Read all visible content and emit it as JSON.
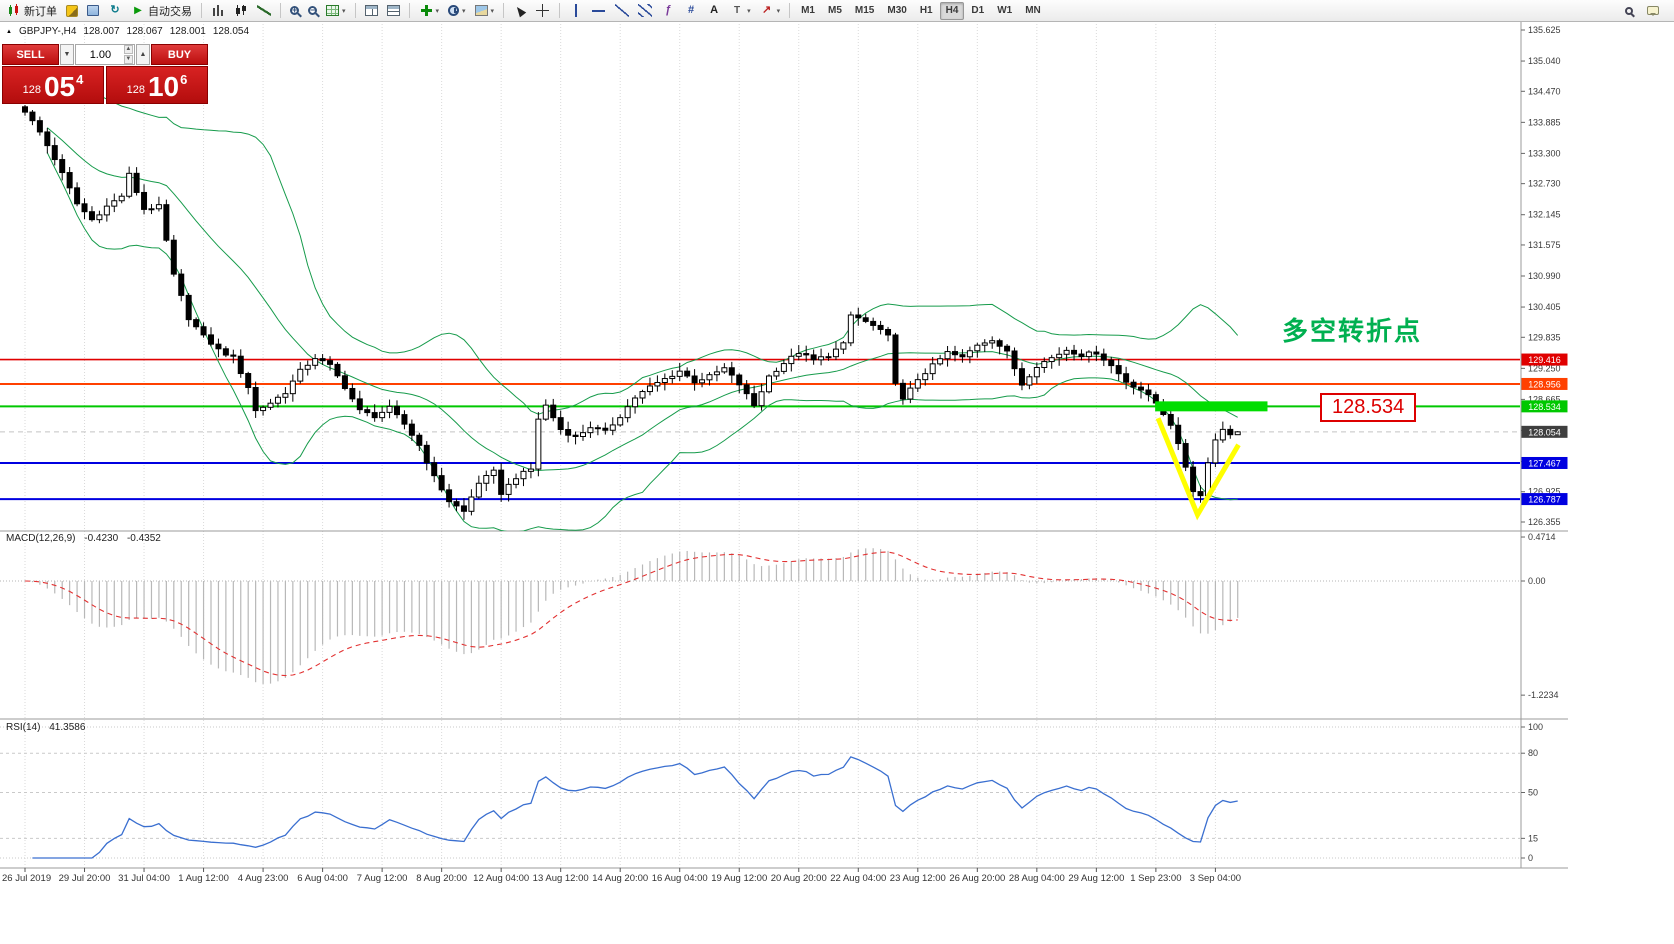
{
  "toolbar": {
    "caret_glyph": "▾",
    "groups": [
      {
        "items": [
          {
            "name": "new-order-button",
            "icon": "candle",
            "label": "新订单"
          },
          {
            "name": "metaeditor-button",
            "icon": "pencil"
          },
          {
            "name": "market-watch-button",
            "icon": "monitor"
          },
          {
            "name": "refresh-button",
            "icon": "refresh",
            "glyph": "↻"
          },
          {
            "name": "autotrading-button",
            "icon": "play",
            "glyph": "▶",
            "label": "自动交易"
          }
        ]
      },
      {
        "items": [
          {
            "name": "bar-chart-button",
            "icon": "bars"
          },
          {
            "name": "candlestick-chart-button",
            "icon": "candles"
          },
          {
            "name": "line-chart-button",
            "icon": "line"
          }
        ]
      },
      {
        "items": [
          {
            "name": "zoom-in-button",
            "icon": "zoom zoomin"
          },
          {
            "name": "zoom-out-button",
            "icon": "zoom zoomout"
          },
          {
            "name": "new-chart-button",
            "icon": "gridgreen",
            "caret": true
          }
        ]
      },
      {
        "items": [
          {
            "name": "tile-windows-button",
            "icon": "tile"
          },
          {
            "name": "arrange-windows-button",
            "icon": "tile2"
          }
        ]
      },
      {
        "items": [
          {
            "name": "indicators-button",
            "icon": "plus",
            "caret": true
          },
          {
            "name": "periods-menu-button",
            "icon": "clock",
            "caret": true
          },
          {
            "name": "templates-button",
            "icon": "image",
            "caret": true
          }
        ]
      },
      {
        "items": [
          {
            "name": "cursor-button",
            "icon": "cursor"
          },
          {
            "name": "crosshair-button",
            "icon": "cross"
          }
        ]
      },
      {
        "items": [
          {
            "name": "vertical-line-button",
            "icon": "vline"
          },
          {
            "name": "horizontal-line-button",
            "icon": "hline"
          },
          {
            "name": "trendline-button",
            "icon": "trend"
          },
          {
            "name": "channel-button",
            "icon": "channel"
          },
          {
            "name": "fibonacci-button",
            "icon": "fibo",
            "glyph": "ƒ"
          },
          {
            "name": "pitchfork-button",
            "icon": "pitch",
            "glyph": "#"
          },
          {
            "name": "text-button",
            "icon": "text",
            "glyph": "A"
          },
          {
            "name": "text-label-button",
            "icon": "tlabel",
            "glyph": "T",
            "caret": true
          },
          {
            "name": "arrows-button",
            "icon": "arrows",
            "glyph": "↗",
            "caret": true
          }
        ]
      },
      {
        "items": [
          {
            "name": "tf-m1-button",
            "label": "M1",
            "cls": "tf"
          },
          {
            "name": "tf-m5-button",
            "label": "M5",
            "cls": "tf"
          },
          {
            "name": "tf-m15-button",
            "label": "M15",
            "cls": "tf"
          },
          {
            "name": "tf-m30-button",
            "label": "M30",
            "cls": "tf"
          },
          {
            "name": "tf-h1-button",
            "label": "H1",
            "cls": "tf"
          },
          {
            "name": "tf-h4-button",
            "label": "H4",
            "cls": "tf",
            "active": true
          },
          {
            "name": "tf-d1-button",
            "label": "D1",
            "cls": "tf"
          },
          {
            "name": "tf-w1-button",
            "label": "W1",
            "cls": "tf"
          },
          {
            "name": "tf-mn-button",
            "label": "MN",
            "cls": "tf"
          }
        ]
      }
    ],
    "right": [
      {
        "name": "search-button",
        "icon": "search"
      },
      {
        "name": "chat-button",
        "icon": "chat"
      }
    ]
  },
  "quote": {
    "caret": "▲",
    "symbol": "GBPJPY-,H4",
    "open": "128.007",
    "high": "128.067",
    "low": "128.001",
    "close": "128.054"
  },
  "trade_panel": {
    "sell_label": "SELL",
    "buy_label": "BUY",
    "volume": "1.00",
    "caret_down": "▼",
    "caret_up": "▲",
    "sell_price": {
      "prefix": "128",
      "big": "05",
      "sup": "4"
    },
    "buy_price": {
      "prefix": "128",
      "big": "10",
      "sup": "6"
    }
  },
  "macd": {
    "name": "MACD(12,26,9)",
    "value_main": "-0.4230",
    "value_signal": "-0.4352"
  },
  "rsi": {
    "name": "RSI(14)",
    "value": "41.3586"
  },
  "annotations": {
    "turning_point": "多空转折点",
    "price_label": "128.534"
  },
  "chart_data": {
    "type": "candlestick",
    "symbol": "GBPJPY",
    "timeframe": "H4",
    "bar_count": 164,
    "close_waypoints": [
      [
        0,
        134.1
      ],
      [
        2,
        133.7
      ],
      [
        4,
        133.2
      ],
      [
        7,
        132.35
      ],
      [
        9,
        132.05
      ],
      [
        11,
        132.3
      ],
      [
        13,
        132.5
      ],
      [
        14,
        132.9
      ],
      [
        16,
        132.25
      ],
      [
        18,
        132.3
      ],
      [
        20,
        131.0
      ],
      [
        22,
        130.2
      ],
      [
        24,
        129.85
      ],
      [
        26,
        129.6
      ],
      [
        28,
        129.45
      ],
      [
        30,
        128.9
      ],
      [
        31,
        128.45
      ],
      [
        33,
        128.6
      ],
      [
        35,
        128.8
      ],
      [
        37,
        129.2
      ],
      [
        39,
        129.45
      ],
      [
        41,
        129.3
      ],
      [
        43,
        128.9
      ],
      [
        45,
        128.45
      ],
      [
        47,
        128.35
      ],
      [
        49,
        128.5
      ],
      [
        51,
        128.2
      ],
      [
        53,
        127.8
      ],
      [
        55,
        127.2
      ],
      [
        57,
        126.75
      ],
      [
        59,
        126.55
      ],
      [
        61,
        127.1
      ],
      [
        63,
        127.3
      ],
      [
        64,
        126.9
      ],
      [
        66,
        127.2
      ],
      [
        68,
        127.35
      ],
      [
        69,
        128.3
      ],
      [
        70,
        128.55
      ],
      [
        72,
        128.1
      ],
      [
        74,
        127.95
      ],
      [
        76,
        128.15
      ],
      [
        78,
        128.05
      ],
      [
        80,
        128.35
      ],
      [
        82,
        128.7
      ],
      [
        84,
        128.9
      ],
      [
        86,
        129.05
      ],
      [
        88,
        129.2
      ],
      [
        90,
        129.0
      ],
      [
        92,
        129.1
      ],
      [
        94,
        129.25
      ],
      [
        96,
        128.95
      ],
      [
        98,
        128.55
      ],
      [
        100,
        129.1
      ],
      [
        102,
        129.35
      ],
      [
        104,
        129.55
      ],
      [
        106,
        129.4
      ],
      [
        108,
        129.5
      ],
      [
        110,
        129.7
      ],
      [
        111,
        130.25
      ],
      [
        112,
        130.2
      ],
      [
        114,
        130.05
      ],
      [
        116,
        129.85
      ],
      [
        117,
        129.0
      ],
      [
        118,
        128.65
      ],
      [
        120,
        129.05
      ],
      [
        122,
        129.3
      ],
      [
        124,
        129.55
      ],
      [
        126,
        129.45
      ],
      [
        128,
        129.7
      ],
      [
        130,
        129.8
      ],
      [
        132,
        129.55
      ],
      [
        134,
        128.95
      ],
      [
        136,
        129.3
      ],
      [
        138,
        129.45
      ],
      [
        140,
        129.6
      ],
      [
        142,
        129.5
      ],
      [
        144,
        129.55
      ],
      [
        146,
        129.3
      ],
      [
        148,
        129.0
      ],
      [
        150,
        128.85
      ],
      [
        152,
        128.6
      ],
      [
        154,
        128.2
      ],
      [
        156,
        127.4
      ],
      [
        157,
        126.95
      ],
      [
        158,
        126.85
      ],
      [
        159,
        127.5
      ],
      [
        160,
        127.9
      ],
      [
        161,
        128.1
      ],
      [
        162,
        128.0
      ],
      [
        163,
        128.054
      ]
    ],
    "last_bar_ohlc": {
      "open": 128.007,
      "high": 128.067,
      "low": 128.001,
      "close": 128.054
    },
    "indicators": {
      "bollinger": {
        "period": 20,
        "deviation": 2
      },
      "macd": {
        "fast": 12,
        "slow": 26,
        "signal": 9
      },
      "rsi": {
        "period": 14
      }
    },
    "price_axis": {
      "ticks": [
        "135.625",
        "135.040",
        "134.470",
        "133.885",
        "133.300",
        "132.730",
        "132.145",
        "131.575",
        "130.990",
        "130.405",
        "129.835",
        "129.250",
        "128.665",
        "128.080",
        "127.495",
        "126.925",
        "126.355"
      ]
    },
    "levels": [
      {
        "price": 129.416,
        "color": "#e00000",
        "width": 1.6,
        "style": "solid",
        "tag": "129.416"
      },
      {
        "price": 128.956,
        "color": "#ff4000",
        "width": 2,
        "style": "solid",
        "tag": "128.956"
      },
      {
        "price": 128.534,
        "color": "#00c800",
        "width": 2,
        "style": "solid",
        "tag": "128.534"
      },
      {
        "price": 127.467,
        "color": "#0000e0",
        "width": 2,
        "style": "solid",
        "tag": "127.467"
      },
      {
        "price": 126.787,
        "color": "#0000e0",
        "width": 2,
        "style": "solid",
        "tag": "126.787"
      },
      {
        "price": 128.054,
        "color": "#3f3f3f",
        "width": 1,
        "style": "dashed",
        "tag": "128.054",
        "role": "current-price"
      }
    ],
    "rectangle": {
      "bar_from": 151.9,
      "bar_to": 167.0,
      "price_top": 128.628,
      "price_bottom": 128.44,
      "color": "#00dd00"
    },
    "checkmark": {
      "points": [
        [
          152.3,
          128.31
        ],
        [
          157.6,
          126.49
        ],
        [
          163.1,
          127.81
        ]
      ],
      "color": "#ffff00",
      "width": 5
    },
    "macd_axis": {
      "max": 0.4714,
      "min": -1.2234,
      "zero_label": "0.00"
    },
    "rsi_axis": {
      "ticks": [
        100,
        80,
        50,
        15,
        0
      ]
    },
    "time_axis": {
      "tick_every_bars": 8,
      "labels": [
        "26 Jul 2019",
        "29 Jul 20:00",
        "31 Jul 04:00",
        "1 Aug 12:00",
        "4 Aug 23:00",
        "6 Aug 04:00",
        "7 Aug 12:00",
        "8 Aug 20:00",
        "12 Aug 04:00",
        "13 Aug 12:00",
        "14 Aug 20:00",
        "16 Aug 04:00",
        "19 Aug 12:00",
        "20 Aug 20:00",
        "22 Aug 04:00",
        "23 Aug 12:00",
        "26 Aug 20:00",
        "28 Aug 04:00",
        "29 Aug 12:00",
        "1 Sep 23:00",
        "3 Sep 04:00"
      ]
    }
  }
}
